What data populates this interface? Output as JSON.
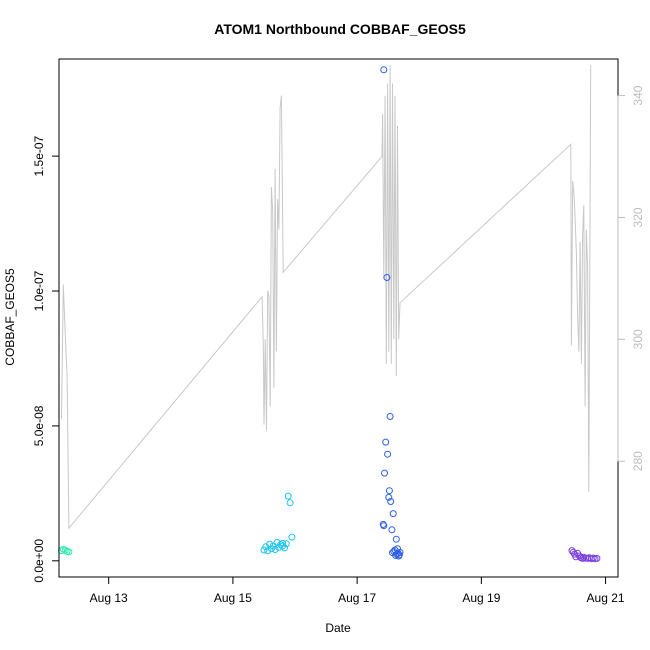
{
  "chart_data": {
    "type": "scatter",
    "title": "ATOM1 Northbound COBBAF_GEOS5",
    "xlabel": "Date",
    "ylabel": "COBBAF_GEOS5",
    "x_unit": "days since Aug 12 00:00 UTC",
    "xlim": [
      0.2,
      9.2
    ],
    "ylim": [
      -6e-09,
      1.86e-07
    ],
    "x_ticks": [
      {
        "value": 1,
        "label": "Aug 13"
      },
      {
        "value": 3,
        "label": "Aug 15"
      },
      {
        "value": 5,
        "label": "Aug 17"
      },
      {
        "value": 7,
        "label": "Aug 19"
      },
      {
        "value": 9,
        "label": "Aug 21"
      }
    ],
    "y_ticks": [
      {
        "value": 0,
        "label": "0.0e+00"
      },
      {
        "value": 5e-08,
        "label": "5.0e-08"
      },
      {
        "value": 1e-07,
        "label": "1.0e-07"
      },
      {
        "value": 1.5e-07,
        "label": "1.5e-07"
      }
    ],
    "y2_ticks": [
      {
        "value": 280,
        "label": "280"
      },
      {
        "value": 300,
        "label": "300"
      },
      {
        "value": 320,
        "label": "320"
      },
      {
        "value": 340,
        "label": "340"
      }
    ],
    "y2lim": [
      261,
      346
    ],
    "series": [
      {
        "color": "#2ee8b0",
        "points": [
          [
            0.24,
            3.8e-09
          ],
          [
            0.27,
            4.3e-09
          ],
          [
            0.3,
            3.9e-09
          ],
          [
            0.33,
            3.5e-09
          ],
          [
            0.36,
            3.3e-09
          ]
        ]
      },
      {
        "color": "#1cc4ee",
        "points": [
          [
            3.5,
            4e-09
          ],
          [
            3.53,
            5.2e-09
          ],
          [
            3.56,
            3.7e-09
          ],
          [
            3.59,
            6.2e-09
          ],
          [
            3.62,
            4.5e-09
          ],
          [
            3.65,
            5.5e-09
          ],
          [
            3.68,
            4.2e-09
          ],
          [
            3.71,
            6.8e-09
          ],
          [
            3.74,
            5e-09
          ],
          [
            3.77,
            6e-09
          ],
          [
            3.8,
            6.5e-09
          ],
          [
            3.8,
            5.5e-09
          ],
          [
            3.83,
            4.8e-09
          ],
          [
            3.86,
            6.3e-09
          ],
          [
            3.89,
            2.4e-08
          ],
          [
            3.92,
            2.15e-08
          ],
          [
            3.95,
            8.8e-09
          ]
        ]
      },
      {
        "color": "#2f5fe6",
        "points": [
          [
            5.43,
            1.82e-07
          ],
          [
            5.48,
            1.05e-07
          ],
          [
            5.53,
            5.35e-08
          ],
          [
            5.46,
            4.4e-08
          ],
          [
            5.49,
            3.95e-08
          ],
          [
            5.44,
            3.25e-08
          ],
          [
            5.52,
            2.6e-08
          ],
          [
            5.51,
            2.35e-08
          ],
          [
            5.54,
            2.2e-08
          ],
          [
            5.58,
            1.75e-08
          ],
          [
            5.42,
            1.35e-08
          ],
          [
            5.43,
            1.3e-08
          ],
          [
            5.56,
            1.15e-08
          ],
          [
            5.63,
            8e-09
          ],
          [
            5.65,
            4.5e-09
          ],
          [
            5.59,
            3.5e-09
          ],
          [
            5.61,
            4e-09
          ],
          [
            5.57,
            3e-09
          ],
          [
            5.64,
            2.5e-09
          ],
          [
            5.66,
            2.8e-09
          ],
          [
            5.68,
            2.2e-09
          ],
          [
            5.69,
            3.1e-09
          ],
          [
            5.62,
            2e-09
          ],
          [
            5.67,
            1.8e-09
          ]
        ]
      },
      {
        "color": "#7a3fe0",
        "points": [
          [
            8.46,
            3.8e-09
          ],
          [
            8.48,
            3.2e-09
          ],
          [
            8.5,
            2.5e-09
          ],
          [
            8.52,
            1.5e-09
          ],
          [
            8.55,
            2.8e-09
          ],
          [
            8.58,
            1.8e-09
          ],
          [
            8.6,
            1.2e-09
          ],
          [
            8.63,
            9e-10
          ],
          [
            8.65,
            1.3e-09
          ],
          [
            8.68,
            1e-09
          ],
          [
            8.71,
            9e-10
          ],
          [
            8.74,
            1.1e-09
          ],
          [
            8.77,
            8e-10
          ],
          [
            8.8,
            1e-09
          ],
          [
            8.83,
            8e-10
          ],
          [
            8.86,
            9e-10
          ]
        ]
      }
    ],
    "secondary_line": {
      "color": "#c8c8c8",
      "points": [
        [
          0.24,
          287
        ],
        [
          0.27,
          309
        ],
        [
          0.3,
          301
        ],
        [
          0.33,
          294
        ],
        [
          0.36,
          269
        ],
        [
          3.47,
          307
        ],
        [
          3.49,
          299
        ],
        [
          3.5,
          286
        ],
        [
          3.52,
          300
        ],
        [
          3.54,
          285
        ],
        [
          3.56,
          308
        ],
        [
          3.58,
          307
        ],
        [
          3.6,
          289
        ],
        [
          3.62,
          325
        ],
        [
          3.64,
          321
        ],
        [
          3.66,
          292
        ],
        [
          3.68,
          328
        ],
        [
          3.7,
          298
        ],
        [
          3.72,
          323
        ],
        [
          3.74,
          318
        ],
        [
          3.76,
          338
        ],
        [
          3.78,
          340
        ],
        [
          3.81,
          311
        ],
        [
          5.4,
          330
        ],
        [
          5.41,
          337
        ],
        [
          5.43,
          310
        ],
        [
          5.45,
          340
        ],
        [
          5.47,
          296
        ],
        [
          5.49,
          342
        ],
        [
          5.51,
          298
        ],
        [
          5.53,
          345
        ],
        [
          5.55,
          296
        ],
        [
          5.57,
          342
        ],
        [
          5.59,
          300
        ],
        [
          5.61,
          340
        ],
        [
          5.63,
          294
        ],
        [
          5.65,
          335
        ],
        [
          5.67,
          300
        ],
        [
          5.69,
          306
        ],
        [
          8.44,
          332
        ],
        [
          8.45,
          299
        ],
        [
          8.47,
          326
        ],
        [
          8.49,
          324
        ],
        [
          8.51,
          320
        ],
        [
          8.53,
          314
        ],
        [
          8.55,
          304
        ],
        [
          8.57,
          298
        ],
        [
          8.59,
          316
        ],
        [
          8.61,
          296
        ],
        [
          8.63,
          317
        ],
        [
          8.65,
          322
        ],
        [
          8.67,
          289
        ],
        [
          8.69,
          318
        ],
        [
          8.71,
          312
        ],
        [
          8.73,
          275
        ],
        [
          8.76,
          345
        ]
      ]
    }
  }
}
